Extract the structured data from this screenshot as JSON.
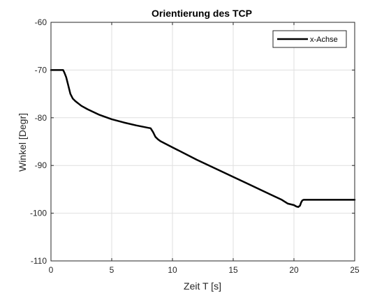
{
  "chart_data": {
    "type": "line",
    "title": "Orientierung des TCP",
    "xlabel": "Zeit T [s]",
    "ylabel": "Winkel [Degr]",
    "xlim": [
      0,
      25
    ],
    "ylim": [
      -110,
      -60
    ],
    "xticks": [
      0,
      5,
      10,
      15,
      20,
      25
    ],
    "yticks": [
      -60,
      -70,
      -80,
      -90,
      -100,
      -110
    ],
    "xtick_labels": [
      "0",
      "5",
      "10",
      "15",
      "20",
      "25"
    ],
    "ytick_labels": [
      "-60",
      "-70",
      "-80",
      "-90",
      "-100",
      "-110"
    ],
    "grid": true,
    "legend_position": "top-right",
    "series": [
      {
        "name": "x-Achse",
        "color": "#000000",
        "x": [
          0,
          1.0,
          1.1,
          1.25,
          1.4,
          1.6,
          1.8,
          2.0,
          2.5,
          3.0,
          4.0,
          5.0,
          6.0,
          7.0,
          8.0,
          8.2,
          8.4,
          8.6,
          8.8,
          9.0,
          10.0,
          12.0,
          14.0,
          16.0,
          18.0,
          19.0,
          19.5,
          20.0,
          20.2,
          20.35,
          20.5,
          20.6,
          20.7,
          20.8,
          20.9,
          21.0,
          22.0,
          25.0
        ],
        "y": [
          -70,
          -70,
          -70.5,
          -71.5,
          -73,
          -75,
          -76,
          -76.5,
          -77.5,
          -78.2,
          -79.4,
          -80.3,
          -81.0,
          -81.6,
          -82.1,
          -82.2,
          -83.0,
          -84.0,
          -84.5,
          -84.9,
          -86.2,
          -88.8,
          -91.2,
          -93.6,
          -96.0,
          -97.2,
          -98.0,
          -98.3,
          -98.6,
          -98.7,
          -98.4,
          -97.7,
          -97.3,
          -97.2,
          -97.2,
          -97.2,
          -97.2,
          -97.2
        ]
      }
    ]
  }
}
